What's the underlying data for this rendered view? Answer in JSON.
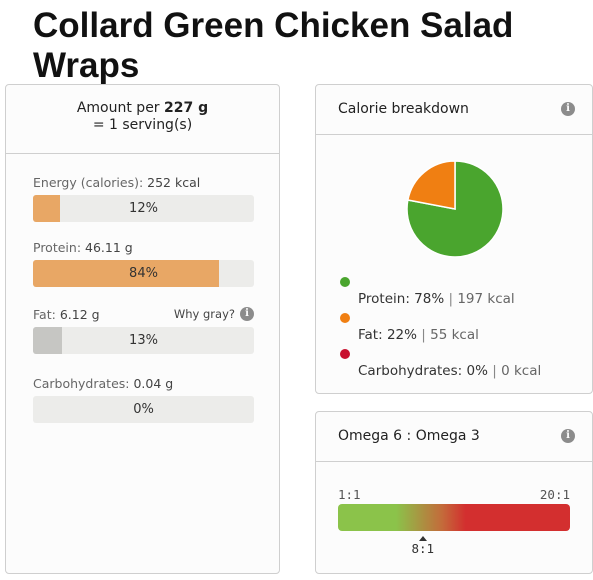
{
  "page": {
    "title": "Collard Green Chicken Salad Wraps"
  },
  "amount": {
    "prefix": "Amount per ",
    "weight": "227 g",
    "serving": "= 1 serving(s)"
  },
  "nutrients": [
    {
      "name": "Energy (calories):",
      "value": "252 kcal",
      "percent_label": "12%",
      "percent": 12,
      "color": "#e8a765"
    },
    {
      "name": "Protein:",
      "value": "46.11 g",
      "percent_label": "84%",
      "percent": 84,
      "color": "#e8a765"
    },
    {
      "name": "Fat:",
      "value": "6.12 g",
      "percent_label": "13%",
      "percent": 13,
      "color": "#c6c6c3"
    },
    {
      "name": "Carbohydrates:",
      "value": "0.04 g",
      "percent_label": "0%",
      "percent": 0,
      "color": "#e8a765"
    }
  ],
  "why_gray": {
    "label": "Why gray?",
    "icon": "info-icon"
  },
  "calorie_breakdown": {
    "title": "Calorie breakdown",
    "icon": "info-icon",
    "items": [
      {
        "name": "Protein:",
        "percent": "78%",
        "kcal": "197 kcal",
        "color": "#4aa52e",
        "value": 78
      },
      {
        "name": "Fat:",
        "percent": "22%",
        "kcal": "55 kcal",
        "color": "#f07f12",
        "value": 22
      },
      {
        "name": "Carbohydrates:",
        "percent": "0%",
        "kcal": "0 kcal",
        "color": "#c8102e",
        "value": 0
      }
    ]
  },
  "omega": {
    "title": "Omega 6 : Omega 3",
    "icon": "info-icon",
    "scale_min": "1:1",
    "scale_max": "20:1",
    "value_label": "8:1",
    "value": 8,
    "min": 1,
    "max": 20
  }
}
